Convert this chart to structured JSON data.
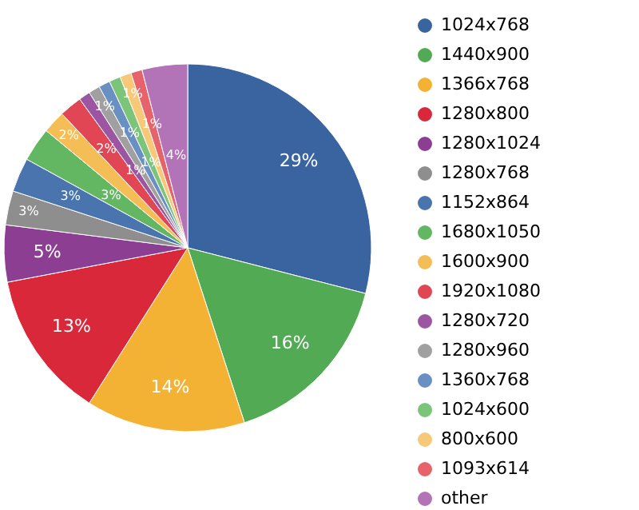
{
  "chart_data": {
    "type": "pie",
    "categories": [
      "1024x768",
      "1440x900",
      "1366x768",
      "1280x800",
      "1280x1024",
      "1280x768",
      "1152x864",
      "1680x1050",
      "1600x900",
      "1920x1080",
      "1280x720",
      "1280x960",
      "1360x768",
      "1024x600",
      "800x600",
      "1093x614",
      "other"
    ],
    "values": [
      29,
      16,
      14,
      13,
      5,
      3,
      3,
      3,
      2,
      2,
      1,
      1,
      1,
      1,
      1,
      1,
      4
    ],
    "value_labels": [
      "29%",
      "16%",
      "14%",
      "13%",
      "5%",
      "3%",
      "3%",
      "3%",
      "2%",
      "2%",
      "1%",
      "1%",
      "1%",
      "1%",
      "1%",
      "1%",
      "4%"
    ],
    "colors": [
      "#3a64a0",
      "#52ab54",
      "#f3b233",
      "#d9283a",
      "#8c3f92",
      "#8e8e8e",
      "#4a74ad",
      "#64b762",
      "#f5bd55",
      "#e04654",
      "#9b55a1",
      "#a0a0a0",
      "#6a8fc2",
      "#7cc47a",
      "#f6c877",
      "#e6636b",
      "#b274b6"
    ],
    "legend": "right"
  }
}
